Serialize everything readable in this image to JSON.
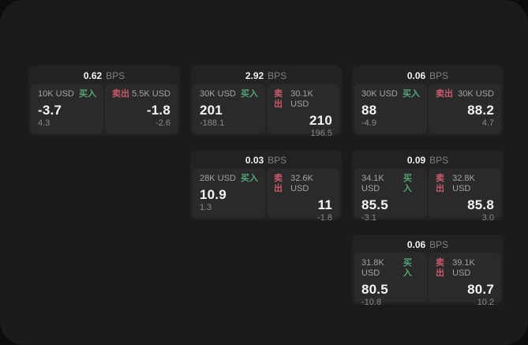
{
  "labels": {
    "bps_unit": "BPS",
    "buy": "买入",
    "sell": "卖出"
  },
  "colors": {
    "buy": "#55a377",
    "sell": "#c95a6c",
    "panel": "#1b1b1b",
    "card": "#222222",
    "pane": "#2a2a2a"
  },
  "cards": [
    {
      "bps": "0.62",
      "buy": {
        "amount": "10K USD",
        "value": "-3.7",
        "sub": "4.3"
      },
      "sell": {
        "amount": "5.5K USD",
        "value": "-1.8",
        "sub": "-2.6"
      }
    },
    {
      "bps": "2.92",
      "buy": {
        "amount": "30K USD",
        "value": "201",
        "sub": "-188.1"
      },
      "sell": {
        "amount": "30.1K USD",
        "value": "210",
        "sub": "196.5"
      }
    },
    {
      "bps": "0.06",
      "buy": {
        "amount": "30K USD",
        "value": "88",
        "sub": "-4.9"
      },
      "sell": {
        "amount": "30K USD",
        "value": "88.2",
        "sub": "4.7"
      }
    },
    {
      "bps": "0.03",
      "buy": {
        "amount": "28K USD",
        "value": "10.9",
        "sub": "1.3"
      },
      "sell": {
        "amount": "32.6K USD",
        "value": "11",
        "sub": "-1.8"
      }
    },
    {
      "bps": "0.09",
      "buy": {
        "amount": "34.1K USD",
        "value": "85.5",
        "sub": "-3.1"
      },
      "sell": {
        "amount": "32.8K USD",
        "value": "85.8",
        "sub": "3.0"
      }
    },
    {
      "bps": "0.06",
      "buy": {
        "amount": "31.8K USD",
        "value": "80.5",
        "sub": "-10.8"
      },
      "sell": {
        "amount": "39.1K USD",
        "value": "80.7",
        "sub": "10.2"
      }
    }
  ]
}
